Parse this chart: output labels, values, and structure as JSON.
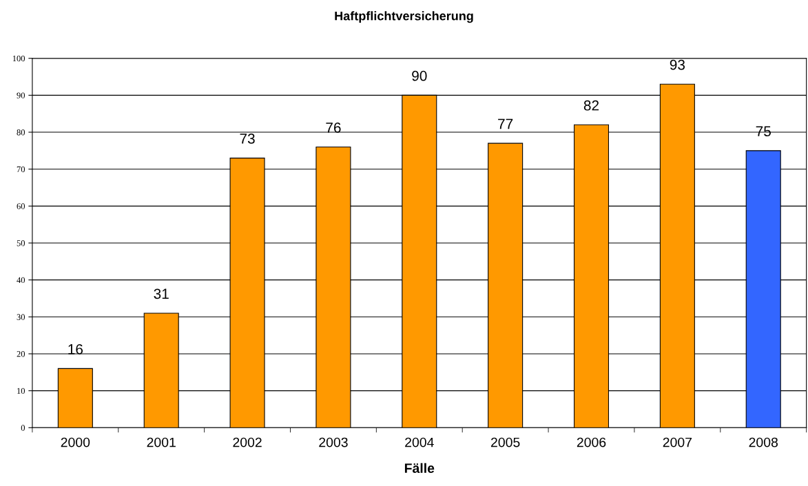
{
  "chart_data": {
    "type": "bar",
    "title": "Haftpflichtversicherung",
    "xlabel": "Fälle",
    "categories": [
      "2000",
      "2001",
      "2002",
      "2003",
      "2004",
      "2005",
      "2006",
      "2007",
      "2008"
    ],
    "values": [
      16,
      31,
      73,
      76,
      90,
      77,
      82,
      93,
      75
    ],
    "colors": [
      "#ff9900",
      "#ff9900",
      "#ff9900",
      "#ff9900",
      "#ff9900",
      "#ff9900",
      "#ff9900",
      "#ff9900",
      "#3366ff"
    ],
    "ylim": [
      0,
      100
    ],
    "yticks": [
      0,
      10,
      20,
      30,
      40,
      50,
      60,
      70,
      80,
      90,
      100
    ],
    "grid": "y",
    "data_labels": true,
    "legend": false
  }
}
